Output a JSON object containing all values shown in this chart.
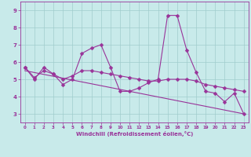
{
  "xlabel": "Windchill (Refroidissement éolien,°C)",
  "xlim": [
    -0.5,
    23.5
  ],
  "ylim": [
    2.5,
    9.5
  ],
  "xticks": [
    0,
    1,
    2,
    3,
    4,
    5,
    6,
    7,
    8,
    9,
    10,
    11,
    12,
    13,
    14,
    15,
    16,
    17,
    18,
    19,
    20,
    21,
    22,
    23
  ],
  "yticks": [
    3,
    4,
    5,
    6,
    7,
    8,
    9
  ],
  "bg_color": "#c8eaea",
  "line_color": "#993399",
  "grid_color": "#a0cccc",
  "series1_x": [
    0,
    1,
    2,
    3,
    4,
    5,
    6,
    7,
    8,
    9,
    10,
    11,
    12,
    13,
    14,
    15,
    16,
    17,
    18,
    19,
    20,
    21,
    22,
    23
  ],
  "series1_y": [
    5.7,
    5.0,
    5.7,
    5.3,
    4.7,
    5.0,
    6.5,
    6.8,
    7.0,
    5.7,
    4.3,
    4.3,
    4.5,
    4.8,
    5.0,
    8.7,
    8.7,
    6.7,
    5.4,
    4.3,
    4.2,
    3.7,
    4.2,
    3.0
  ],
  "series2_x": [
    0,
    1,
    2,
    3,
    4,
    5,
    6,
    7,
    8,
    9,
    10,
    11,
    12,
    13,
    14,
    15,
    16,
    17,
    18,
    19,
    20,
    21,
    22,
    23
  ],
  "series2_y": [
    5.7,
    5.1,
    5.5,
    5.3,
    5.0,
    5.2,
    5.5,
    5.5,
    5.4,
    5.3,
    5.2,
    5.1,
    5.0,
    4.9,
    4.9,
    5.0,
    5.0,
    5.0,
    4.9,
    4.7,
    4.6,
    4.5,
    4.4,
    4.3
  ],
  "series3_x": [
    0,
    23
  ],
  "series3_y": [
    5.5,
    3.0
  ],
  "linewidth": 0.8,
  "markersize": 2.5
}
